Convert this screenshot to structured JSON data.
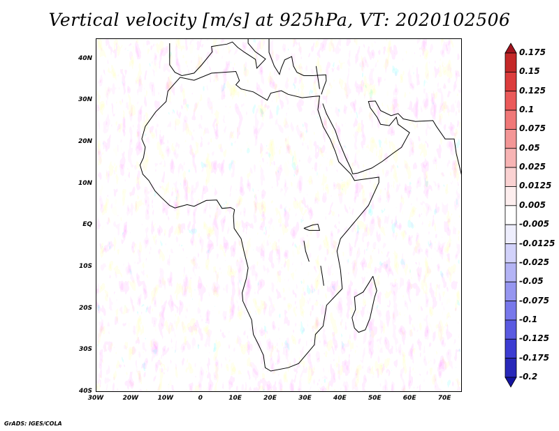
{
  "title": "Vertical velocity [m/s] at 925hPa, VT: 2020102506",
  "credit": "GrADS: IGES/COLA",
  "map": {
    "lon_range": [
      -30,
      75
    ],
    "lat_range": [
      -40,
      45
    ],
    "lat_ticks": [
      {
        "value": 40,
        "label": "40N"
      },
      {
        "value": 30,
        "label": "30N"
      },
      {
        "value": 20,
        "label": "20N"
      },
      {
        "value": 10,
        "label": "10N"
      },
      {
        "value": 0,
        "label": "EQ"
      },
      {
        "value": -10,
        "label": "10S"
      },
      {
        "value": -20,
        "label": "20S"
      },
      {
        "value": -30,
        "label": "30S"
      },
      {
        "value": -40,
        "label": "40S"
      }
    ],
    "lon_ticks": [
      {
        "value": -30,
        "label": "30W"
      },
      {
        "value": -20,
        "label": "20W"
      },
      {
        "value": -10,
        "label": "10W"
      },
      {
        "value": 0,
        "label": "0"
      },
      {
        "value": 10,
        "label": "10E"
      },
      {
        "value": 20,
        "label": "20E"
      },
      {
        "value": 30,
        "label": "30E"
      },
      {
        "value": 40,
        "label": "40E"
      },
      {
        "value": 50,
        "label": "50E"
      },
      {
        "value": 60,
        "label": "60E"
      },
      {
        "value": 70,
        "label": "70E"
      }
    ]
  },
  "colorbar": {
    "labels": [
      "0.175",
      "0.15",
      "0.125",
      "0.1",
      "0.075",
      "0.05",
      "0.025",
      "0.0125",
      "0.005",
      "-0.005",
      "-0.0125",
      "-0.025",
      "-0.05",
      "-0.075",
      "-0.1",
      "-0.125",
      "-0.175",
      "-0.2"
    ],
    "colors": [
      "#a0141e",
      "#c42828",
      "#dc3c3c",
      "#eb5a5a",
      "#f07878",
      "#f39696",
      "#f7b4b4",
      "#fad2d2",
      "#fdeeee",
      "#ffffff",
      "#eeeefd",
      "#d2d2fa",
      "#b4b4f5",
      "#9696f0",
      "#7878eb",
      "#5a5ae1",
      "#3c3cd2",
      "#2828b9",
      "#1414a0"
    ]
  }
}
